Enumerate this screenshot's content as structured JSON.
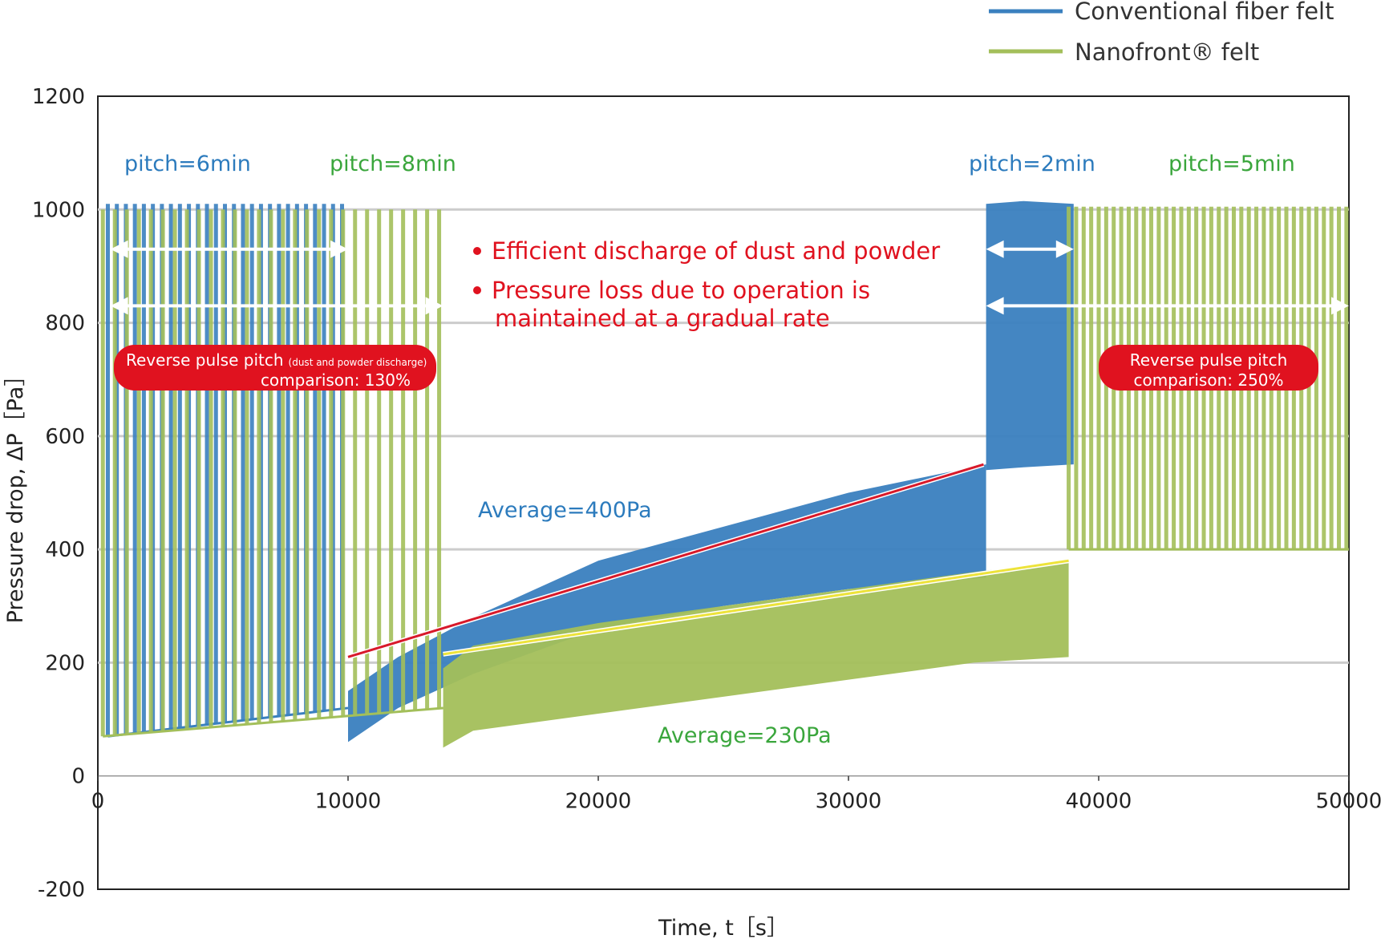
{
  "chart_data": {
    "type": "line",
    "xlabel": "Time, t［s］",
    "ylabel": "Pressure drop, ΔP［Pa］",
    "xlim": [
      0,
      50000
    ],
    "ylim": [
      -200,
      1200
    ],
    "xticks": [
      "0",
      "10000",
      "20000",
      "30000",
      "40000",
      "50000"
    ],
    "xtick_values": [
      0,
      10000,
      20000,
      30000,
      40000,
      50000
    ],
    "yticks": [
      "1200",
      "1000",
      "800",
      "600",
      "400",
      "200",
      "0",
      "-200"
    ],
    "ytick_values": [
      1200,
      1000,
      800,
      600,
      400,
      200,
      0,
      -200
    ],
    "grid_y": [
      1000,
      800,
      600,
      400,
      200
    ],
    "legend_position": "top-right",
    "series": [
      {
        "name": "Conventional fiber felt",
        "color": "#3a80bf",
        "segments": [
          {
            "mode": "pulse",
            "x_start": 400,
            "x_end": 10000,
            "pitch_s": 360,
            "low_start": 70,
            "low_end": 120,
            "high": 1010
          },
          {
            "mode": "band",
            "x": [
              10000,
              12000,
              15000,
              20000,
              25000,
              30000,
              35500
            ],
            "low": [
              60,
              120,
              180,
              260,
              300,
              330,
              350
            ],
            "high": [
              150,
              210,
              280,
              380,
              440,
              500,
              550
            ]
          },
          {
            "mode": "band",
            "x": [
              35500,
              37000,
              39000
            ],
            "low": [
              540,
              545,
              550
            ],
            "high": [
              1010,
              1015,
              1010
            ]
          }
        ]
      },
      {
        "name": "Nanofront® felt",
        "color": "#a3bf5a",
        "segments": [
          {
            "mode": "pulse",
            "x_start": 200,
            "x_end": 13800,
            "pitch_s": 480,
            "low_start": 70,
            "low_end": 120,
            "high": 1000
          },
          {
            "mode": "band",
            "x": [
              13800,
              15000,
              20000,
              25000,
              30000,
              35000,
              38800
            ],
            "low": [
              50,
              80,
              110,
              140,
              170,
              200,
              210
            ],
            "high": [
              190,
              230,
              270,
              300,
              330,
              360,
              380
            ]
          },
          {
            "mode": "pulse",
            "x_start": 38800,
            "x_end": 50000,
            "pitch_s": 300,
            "low_start": 400,
            "low_end": 400,
            "high": 1005
          }
        ]
      }
    ],
    "trend_lines": [
      {
        "name": "Conventional trend",
        "color": "#d8192a",
        "x": [
          10000,
          35400
        ],
        "y": [
          210,
          550
        ]
      },
      {
        "name": "Nanofront trend",
        "color": "#ede33a",
        "x": [
          13800,
          38800
        ],
        "y": [
          215,
          380
        ]
      }
    ],
    "arrows": [
      {
        "x": [
          500,
          10000
        ],
        "y": 930
      },
      {
        "x": [
          500,
          13800
        ],
        "y": 830
      },
      {
        "x": [
          35500,
          39000
        ],
        "y": 930
      },
      {
        "x": [
          35500,
          50000
        ],
        "y": 830
      }
    ],
    "annotations": {
      "pitch_6": "pitch=6min",
      "pitch_8": "pitch=8min",
      "pitch_2": "pitch=2min",
      "pitch_5": "pitch=5min",
      "bullet_1": "Efficient discharge of dust and powder",
      "bullet_2_line1": "Pressure loss due to operation is",
      "bullet_2_line2": "maintained at a gradual rate",
      "badge_left_line1": "Reverse pulse pitch",
      "badge_left_small": "(dust and powder discharge)",
      "badge_left_line2": "comparison: 130%",
      "badge_right_line1": "Reverse pulse pitch",
      "badge_right_line2": "comparison: 250%",
      "avg_conventional": "Average=400Pa",
      "avg_nanofront": "Average=230Pa"
    },
    "colors": {
      "conventional": "#3a80bf",
      "nanofront": "#a3bf5a",
      "green_text": "#3aa63c",
      "blue_text": "#2c7bbd",
      "red_text": "#e0121f",
      "badge_fill": "#e0121f",
      "grid": "#cccccc"
    }
  }
}
